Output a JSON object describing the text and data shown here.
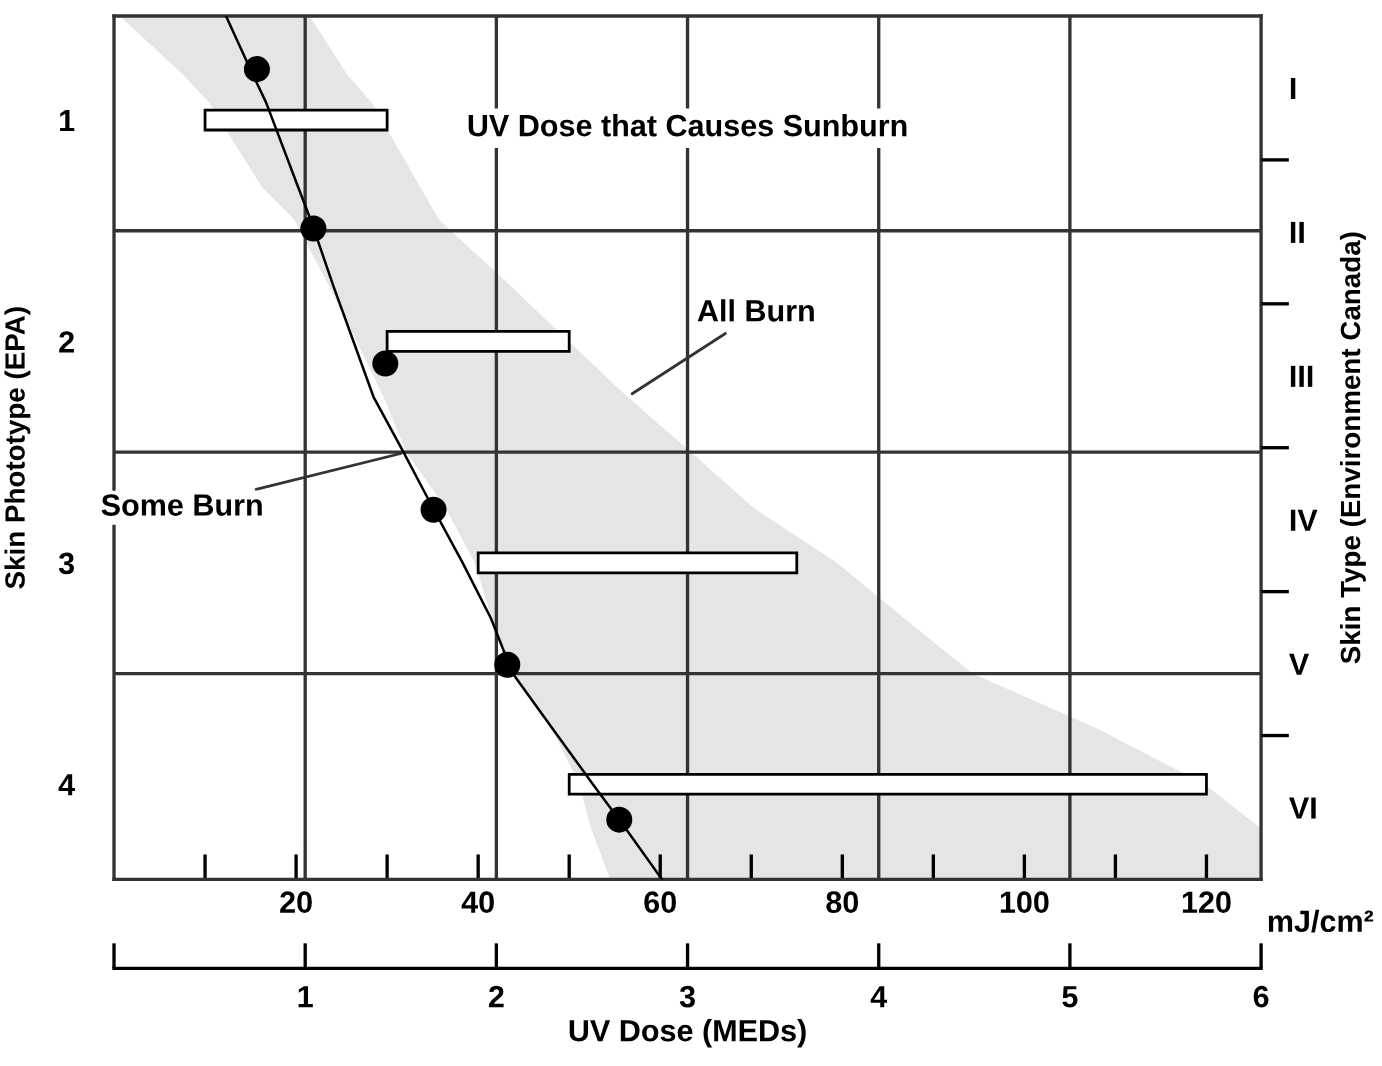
{
  "chart_data": {
    "type": "bar",
    "orientation": "horizontal",
    "title": "UV Dose that Causes Sunburn",
    "xlabel": "mJ/cm²",
    "x2label": "UV Dose (MEDs)",
    "ylabel": "Skin Phototype (EPA)",
    "y2label": "Skin Type (Environment Canada)",
    "xlim": [
      0,
      126
    ],
    "xticks": [
      {
        "value": 10,
        "label": null
      },
      20,
      {
        "value": 30,
        "label": null
      },
      40,
      {
        "value": 50,
        "label": null
      },
      60,
      {
        "value": 70,
        "label": null
      },
      80,
      {
        "value": 90,
        "label": null
      },
      100,
      {
        "value": 110,
        "label": null
      },
      120
    ],
    "x2lim": [
      0,
      6
    ],
    "x2ticks": [
      {
        "value": 0,
        "label": null
      },
      1,
      2,
      3,
      4,
      5,
      6
    ],
    "ylim": [
      4.43,
      0.53
    ],
    "yticks": [
      1,
      2,
      3,
      4
    ],
    "y2_categories": [
      "I",
      "II",
      "III",
      "IV",
      "V",
      "VI"
    ],
    "ref_lines": [
      {
        "axis": "y",
        "value": 1.5,
        "color": "#333333"
      },
      {
        "axis": "y",
        "value": 2.5,
        "color": "#333333"
      },
      {
        "axis": "y",
        "value": 3.5,
        "color": "#333333"
      },
      {
        "axis": "x",
        "value": 21,
        "color": "#333333"
      },
      {
        "axis": "x",
        "value": 42,
        "color": "#333333"
      },
      {
        "axis": "x",
        "value": 63,
        "color": "#333333"
      },
      {
        "axis": "x",
        "value": 84,
        "color": "#333333"
      },
      {
        "axis": "x",
        "value": 105,
        "color": "#333333"
      }
    ],
    "annotations": [
      {
        "text": "All Burn",
        "x": 56.4,
        "y": 2.25
      },
      {
        "text": "Some Burn",
        "x": 32.1,
        "y": 2.5
      }
    ],
    "series": [
      {
        "type": "line",
        "color": "#000000",
        "marker": "none",
        "x": [
          0.53,
          0.8,
          0.92,
          1.3,
          1.45,
          1.75,
          1.92,
          2.25,
          2.5,
          2.75,
          3.0,
          3.25,
          3.5,
          3.75,
          4.0,
          4.2,
          4.43
        ],
        "values": [
          12.3,
          15.3,
          16.7,
          20.2,
          21.6,
          24.1,
          25.6,
          28.5,
          31.8,
          35.0,
          38.3,
          41.4,
          43.8,
          48.2,
          52.6,
          56.2,
          60.2
        ],
        "lower": [
          0.6,
          7.7,
          10.4,
          16.2,
          19.8,
          23.6,
          25.7,
          29.6,
          32.1,
          36.4,
          39.6,
          41.5,
          43.6,
          48.1,
          51.1,
          52.4,
          54.5
        ],
        "upper": [
          21.5,
          25.7,
          28.3,
          33.6,
          35.7,
          43.6,
          47.9,
          56.4,
          63.4,
          70.2,
          79.4,
          86.8,
          94.3,
          108.1,
          119.8,
          126,
          126
        ]
      },
      {
        "color": "#ffffff",
        "x": [
          1,
          2,
          3,
          4
        ],
        "base": [
          10,
          30,
          40,
          50
        ],
        "values": [
          20,
          20,
          35,
          70
        ]
      },
      {
        "type": "scatter",
        "color": "#000000",
        "marker": "circle",
        "x": [
          0.77,
          1.49,
          2.1,
          2.76,
          3.46,
          4.16
        ],
        "values": [
          15.7,
          21.9,
          29.8,
          35.1,
          43.2,
          55.5
        ]
      }
    ]
  }
}
